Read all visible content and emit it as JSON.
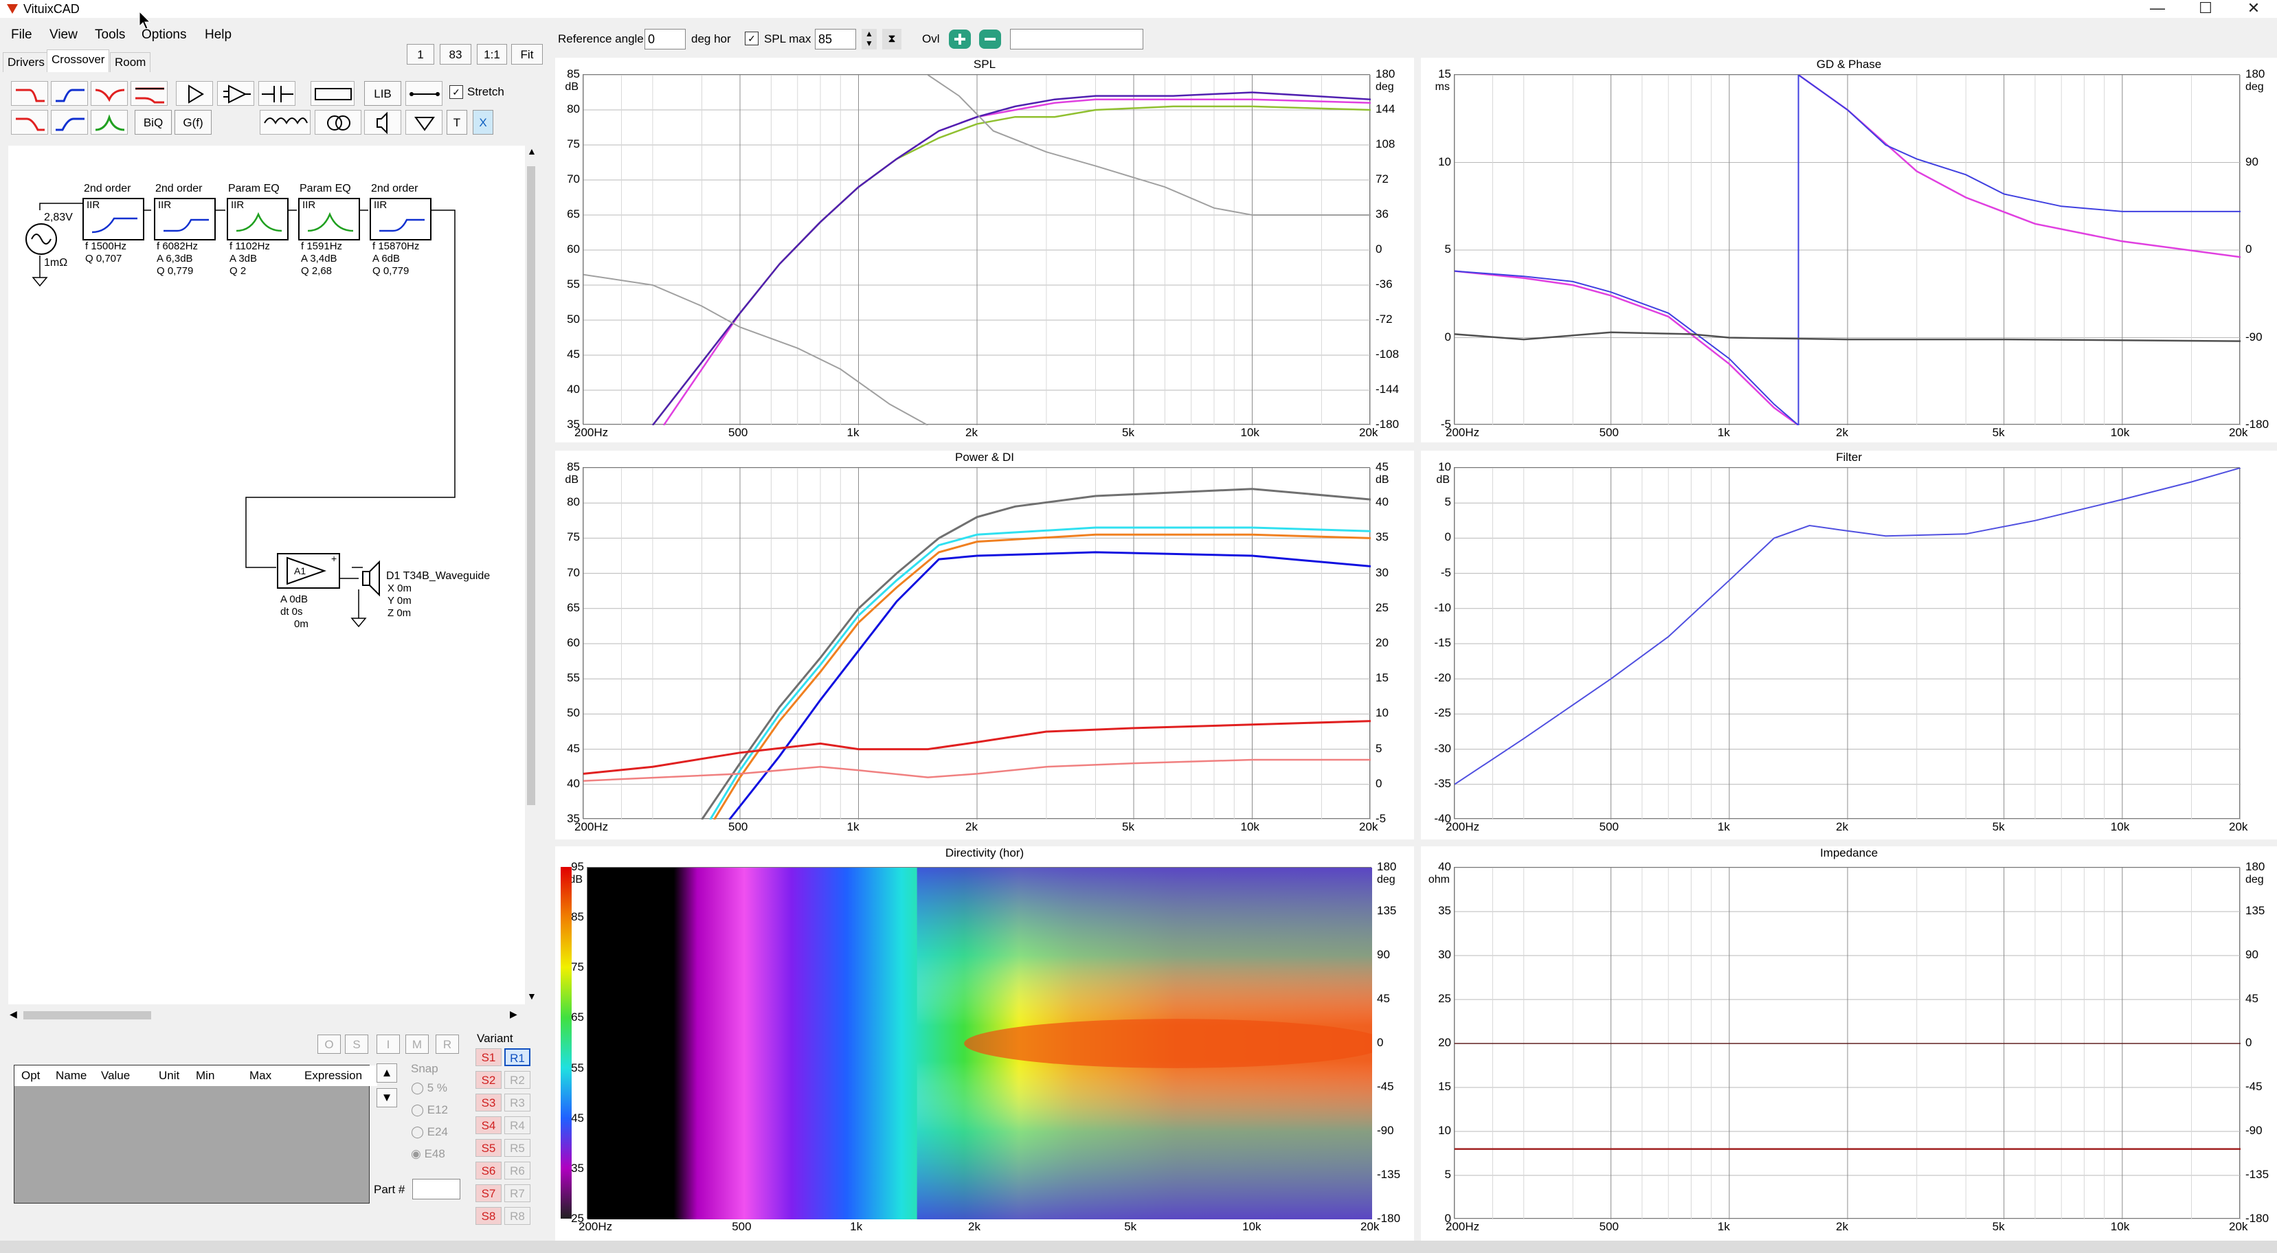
{
  "window": {
    "title": "VituixCAD",
    "min": "—",
    "max": "☐",
    "close": "✕"
  },
  "menu": [
    "File",
    "View",
    "Tools",
    "Options",
    "Help"
  ],
  "tabs": [
    "Drivers",
    "Crossover",
    "Room"
  ],
  "zoom_buttons": [
    "1",
    "83",
    "1:1",
    "Fit"
  ],
  "toolbar": {
    "lib": "LIB",
    "biq": "BiQ",
    "gf": "G(f)",
    "t": "T",
    "x": "X",
    "stretch": "Stretch"
  },
  "top_controls": {
    "ref_label": "Reference angle",
    "ref_value": "0",
    "deg_hor": "deg hor",
    "spl_max_label": "SPL max",
    "spl_max_value": "85",
    "ovl": "Ovl"
  },
  "schematic": {
    "source": {
      "voltage": "2,83V",
      "impedance": "1mΩ"
    },
    "blocks": [
      {
        "title": "2nd order",
        "type": "IIR",
        "l1": "f  1500Hz",
        "l2": "Q  0,707",
        "l3": ""
      },
      {
        "title": "2nd order",
        "type": "IIR",
        "l1": "f  6082Hz",
        "l2": "A  6,3dB",
        "l3": "Q  0,779"
      },
      {
        "title": "Param EQ",
        "type": "IIR",
        "l1": "f  1102Hz",
        "l2": "A  3dB",
        "l3": "Q  2"
      },
      {
        "title": "Param EQ",
        "type": "IIR",
        "l1": "f  1591Hz",
        "l2": "A  3,4dB",
        "l3": "Q  2,68"
      },
      {
        "title": "2nd order",
        "type": "IIR",
        "l1": "f  15870Hz",
        "l2": "A  6dB",
        "l3": "Q  0,779"
      }
    ],
    "amp": {
      "label": "A1",
      "a": "A  0dB",
      "dt": "dt 0s",
      "dist": "0m"
    },
    "driver": {
      "name": "D1 T34B_Waveguide",
      "x": "X  0m",
      "y": "Y  0m",
      "z": "Z  0m"
    }
  },
  "param_table": {
    "headers": [
      "Opt",
      "Name",
      "Value",
      "Unit",
      "Min",
      "Max",
      "Expression"
    ],
    "ops": [
      "O",
      "S",
      "I",
      "M",
      "R"
    ]
  },
  "snap": {
    "title": "Snap",
    "options": [
      "5 %",
      "E12",
      "E24",
      "E48"
    ]
  },
  "variant": {
    "title": "Variant",
    "s": [
      "S1",
      "S2",
      "S3",
      "S4",
      "S5",
      "S6",
      "S7",
      "S8"
    ],
    "r": [
      "R1",
      "R2",
      "R3",
      "R4",
      "R5",
      "R6",
      "R7",
      "R8"
    ]
  },
  "part_label": "Part #",
  "freq_ticks": [
    "200Hz",
    "500",
    "1k",
    "2k",
    "5k",
    "10k",
    "20k"
  ],
  "charts": {
    "spl": {
      "title": "SPL",
      "left_unit": "dB",
      "right_unit": "deg",
      "left_ticks": [
        "85",
        "80",
        "75",
        "70",
        "65",
        "60",
        "55",
        "50",
        "45",
        "40",
        "35"
      ],
      "right_ticks": [
        "180",
        "144",
        "108",
        "72",
        "36",
        "0",
        "-36",
        "-72",
        "-108",
        "-144",
        "-180"
      ]
    },
    "gd": {
      "title": "GD & Phase",
      "left_unit": "ms",
      "right_unit": "deg",
      "left_ticks": [
        "15",
        "10",
        "5",
        "0",
        "-5"
      ],
      "right_ticks": [
        "180",
        "90",
        "0",
        "-90",
        "-180"
      ]
    },
    "power": {
      "title": "Power & DI",
      "left_unit": "dB",
      "right_unit": "dB",
      "left_ticks": [
        "85",
        "80",
        "75",
        "70",
        "65",
        "60",
        "55",
        "50",
        "45",
        "40",
        "35"
      ],
      "right_ticks": [
        "45",
        "40",
        "35",
        "30",
        "25",
        "20",
        "15",
        "10",
        "5",
        "0",
        "-5"
      ]
    },
    "filter": {
      "title": "Filter",
      "left_unit": "dB",
      "left_ticks": [
        "10",
        "5",
        "0",
        "-5",
        "-10",
        "-15",
        "-20",
        "-25",
        "-30",
        "-35",
        "-40"
      ]
    },
    "dir": {
      "title": "Directivity (hor)",
      "left_unit": "dB",
      "right_unit": "deg",
      "left_ticks": [
        "95",
        "85",
        "75",
        "65",
        "55",
        "45",
        "35",
        "25"
      ],
      "right_ticks": [
        "180",
        "135",
        "90",
        "45",
        "0",
        "-45",
        "-90",
        "-135",
        "-180"
      ]
    },
    "imp": {
      "title": "Impedance",
      "left_unit": "ohm",
      "right_unit": "deg",
      "left_ticks": [
        "40",
        "35",
        "30",
        "25",
        "20",
        "15",
        "10",
        "5",
        "0"
      ],
      "right_ticks": [
        "180",
        "135",
        "90",
        "45",
        "0",
        "-45",
        "-90",
        "-135",
        "-180"
      ]
    }
  },
  "colors": {
    "purple": "#5020b0",
    "magenta": "#e040e0",
    "green": "#90c030",
    "gray": "#a0a0a0",
    "blue": "#1010e0",
    "cyan": "#30e0f0",
    "orange": "#f08020",
    "red": "#e02020",
    "pink": "#f08080",
    "darkgray": "#707070"
  }
}
